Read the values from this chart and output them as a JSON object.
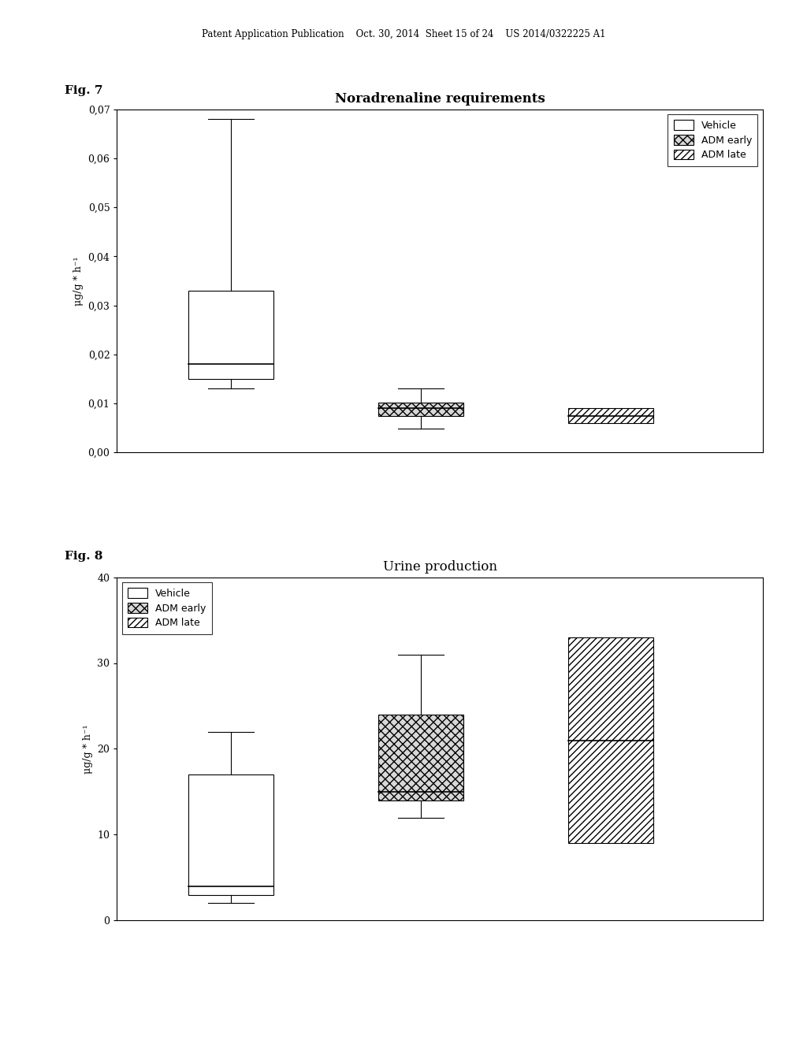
{
  "fig7": {
    "title": "Noradrenaline requirements",
    "ylabel": "μg/g * h⁻¹",
    "ylim": [
      0.0,
      0.07
    ],
    "yticks": [
      0.0,
      0.01,
      0.02,
      0.03,
      0.04,
      0.05,
      0.06,
      0.07
    ],
    "ytick_labels": [
      "0,00",
      "0,01",
      "0,02",
      "0,03",
      "0,04",
      "0,05",
      "0,06",
      "0,07"
    ],
    "boxes": [
      {
        "label": "Vehicle",
        "x": 1,
        "q1": 0.015,
        "median": 0.018,
        "q3": 0.033,
        "whisker_low": 0.013,
        "whisker_high": 0.068,
        "color": "white",
        "hatch": null
      },
      {
        "label": "ADM early",
        "x": 2,
        "q1": 0.0075,
        "median": 0.009,
        "q3": 0.0102,
        "whisker_low": 0.0048,
        "whisker_high": 0.013,
        "color": "#d8d8d8",
        "hatch": "xxx"
      },
      {
        "label": "ADM late",
        "x": 3,
        "q1": 0.006,
        "median": 0.0075,
        "q3": 0.009,
        "whisker_low": 0.006,
        "whisker_high": 0.009,
        "color": "white",
        "hatch": "////"
      }
    ],
    "legend_entries": [
      {
        "label": "Vehicle",
        "color": "white",
        "hatch": null
      },
      {
        "label": "ADM early",
        "color": "#d8d8d8",
        "hatch": "xxx"
      },
      {
        "label": "ADM late",
        "color": "white",
        "hatch": "////"
      }
    ]
  },
  "fig8": {
    "title": "Urine production",
    "ylabel": "μg/g * h⁻¹",
    "ylim": [
      0,
      40
    ],
    "yticks": [
      0,
      10,
      20,
      30,
      40
    ],
    "ytick_labels": [
      "0",
      "10",
      "20",
      "30",
      "40"
    ],
    "boxes": [
      {
        "label": "Vehicle",
        "x": 1,
        "q1": 3,
        "median": 4,
        "q3": 17,
        "whisker_low": 2,
        "whisker_high": 22,
        "color": "white",
        "hatch": null
      },
      {
        "label": "ADM early",
        "x": 2,
        "q1": 14,
        "median": 15,
        "q3": 24,
        "whisker_low": 12,
        "whisker_high": 31,
        "color": "#d8d8d8",
        "hatch": "xxx"
      },
      {
        "label": "ADM late",
        "x": 3,
        "q1": 9,
        "median": 21,
        "q3": 33,
        "whisker_low": 9,
        "whisker_high": 33,
        "color": "white",
        "hatch": "////"
      }
    ],
    "legend_entries": [
      {
        "label": "Vehicle",
        "color": "white",
        "hatch": null
      },
      {
        "label": "ADM early",
        "color": "#d8d8d8",
        "hatch": "xxx"
      },
      {
        "label": "ADM late",
        "color": "white",
        "hatch": "////"
      }
    ]
  },
  "background_color": "#ffffff",
  "header_text": "Patent Application Publication    Oct. 30, 2014  Sheet 15 of 24    US 2014/0322225 A1",
  "fig7_label": "Fig. 7",
  "fig8_label": "Fig. 8"
}
